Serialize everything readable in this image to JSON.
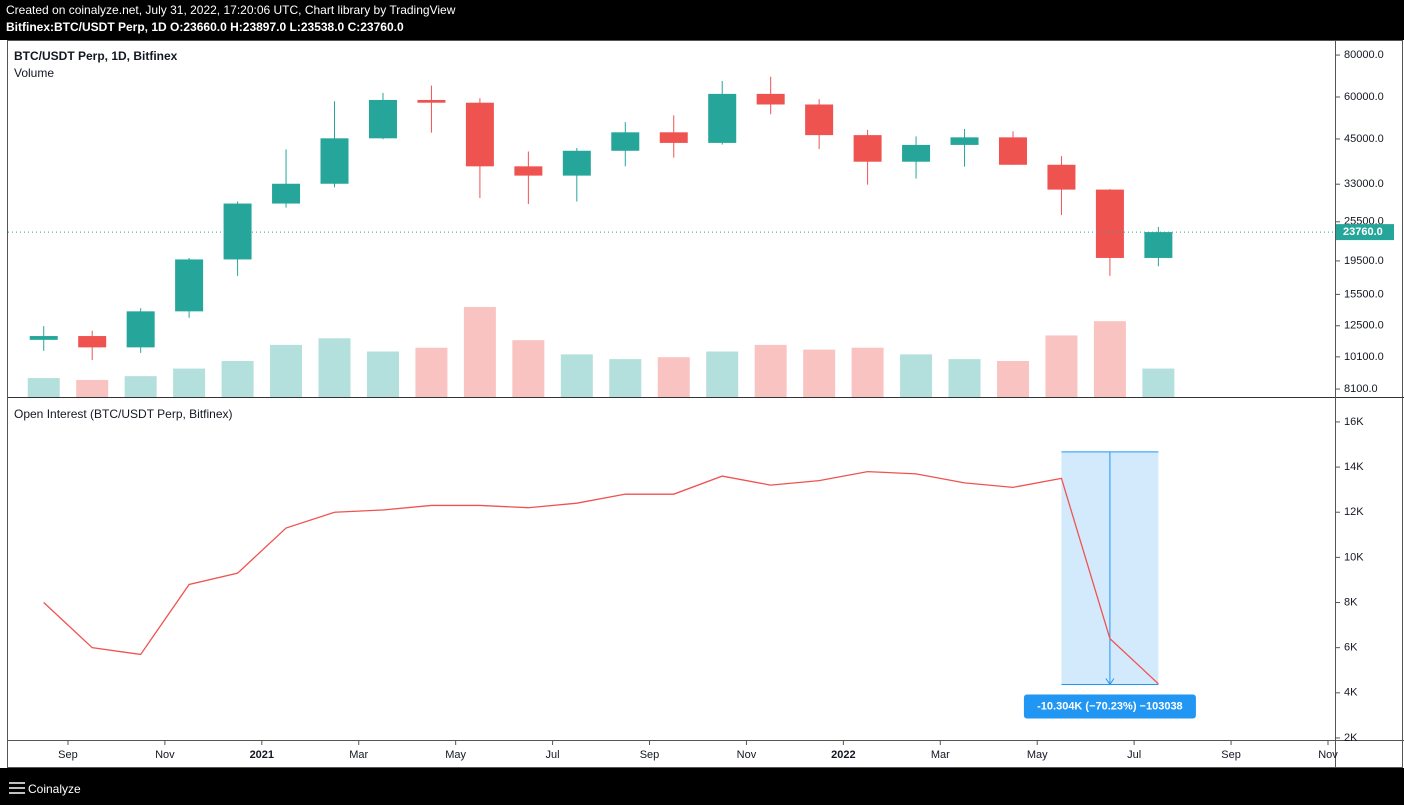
{
  "header": {
    "created": "Created on coinalyze.net, July 31, 2022, 17:20:06 UTC, Chart library by TradingView",
    "symbol": "Bitfinex:BTC/USDT Perp, 1D",
    "ohlc": [
      {
        "label": "O:",
        "value": "23660.0"
      },
      {
        "label": "H:",
        "value": "23897.0"
      },
      {
        "label": "L:",
        "value": "23538.0"
      },
      {
        "label": "C:",
        "value": "23760.0"
      }
    ]
  },
  "footer": {
    "brand": "Coinalyze"
  },
  "chart_data": [
    {
      "type": "candlestick",
      "title": "BTC/USDT Perp, 1D, Bitfinex",
      "subtitle": "Volume",
      "x": [
        "2020-08",
        "2020-09",
        "2020-10",
        "2020-11",
        "2020-12",
        "2021-01",
        "2021-02",
        "2021-03",
        "2021-04",
        "2021-05",
        "2021-06",
        "2021-07",
        "2021-08",
        "2021-09",
        "2021-10",
        "2021-11",
        "2021-12",
        "2022-01",
        "2022-02",
        "2022-03",
        "2022-04",
        "2022-05",
        "2022-06",
        "2022-07"
      ],
      "open": [
        11350,
        11650,
        10780,
        13800,
        19700,
        28900,
        33100,
        45200,
        58800,
        57700,
        37300,
        35000,
        41500,
        47100,
        43800,
        61300,
        57000,
        46200,
        38500,
        43200,
        45500,
        37700,
        31800,
        19900
      ],
      "high": [
        12470,
        12080,
        14100,
        19900,
        29300,
        41900,
        58300,
        61700,
        64900,
        59500,
        41300,
        42300,
        50500,
        52900,
        67000,
        69000,
        59100,
        47900,
        45800,
        48200,
        47400,
        40000,
        31900,
        24600
      ],
      "low": [
        10520,
        9880,
        10380,
        13200,
        17600,
        28100,
        32300,
        44900,
        47000,
        30000,
        28800,
        29300,
        37300,
        39600,
        43300,
        53300,
        42000,
        32900,
        34300,
        37200,
        37700,
        26700,
        17600,
        18800
      ],
      "close": [
        11650,
        10780,
        13800,
        19700,
        28900,
        33100,
        45200,
        58800,
        57700,
        37300,
        35000,
        41500,
        47100,
        43800,
        61300,
        57000,
        46200,
        38500,
        43200,
        45500,
        37700,
        31800,
        19900,
        23760
      ],
      "last_price_label": "23760.0",
      "volume": [
        20,
        18,
        22,
        30,
        38,
        55,
        62,
        48,
        52,
        95,
        60,
        45,
        40,
        42,
        48,
        55,
        50,
        52,
        45,
        40,
        38,
        65,
        80,
        30
      ],
      "up_color": "#26a69a",
      "down_color": "#ef5350",
      "xlim": [
        "2020-08",
        "2022-11"
      ],
      "ylim": [
        7670,
        88700
      ],
      "log": true,
      "yticks": [
        {
          "value": 8100,
          "label": "8100.0"
        },
        {
          "value": 10100,
          "label": "10100.0"
        },
        {
          "value": 12500,
          "label": "12500.0"
        },
        {
          "value": 15500,
          "label": "15500.0"
        },
        {
          "value": 19500,
          "label": "19500.0"
        },
        {
          "value": 25500,
          "label": "25500.0"
        },
        {
          "value": 33000,
          "label": "33000.0"
        },
        {
          "value": 45000,
          "label": "45000.0"
        },
        {
          "value": 60000,
          "label": "60000.0"
        },
        {
          "value": 80000,
          "label": "80000.0"
        }
      ]
    },
    {
      "type": "line",
      "title": "Open Interest (BTC/USDT Perp, Bitfinex)",
      "x": [
        "2020-08",
        "2020-09",
        "2020-10",
        "2020-11",
        "2020-12",
        "2021-01",
        "2021-02",
        "2021-03",
        "2021-04",
        "2021-05",
        "2021-06",
        "2021-07",
        "2021-08",
        "2021-09",
        "2021-10",
        "2021-11",
        "2021-12",
        "2022-01",
        "2022-02",
        "2022-03",
        "2022-04",
        "2022-05",
        "2022-06",
        "2022-07"
      ],
      "values": [
        8000,
        6000,
        5700,
        8800,
        9300,
        11300,
        12000,
        12100,
        12300,
        12300,
        12200,
        12400,
        12800,
        12800,
        13600,
        13200,
        13400,
        13800,
        13700,
        13300,
        13100,
        13500,
        6400,
        4400
      ],
      "color": "#ef5350",
      "xlim": [
        "2020-08",
        "2022-11"
      ],
      "ylim": [
        1910,
        17060
      ],
      "yticks": [
        {
          "value": 2000,
          "label": "2K"
        },
        {
          "value": 4000,
          "label": "4K"
        },
        {
          "value": 6000,
          "label": "6K"
        },
        {
          "value": 8000,
          "label": "8K"
        },
        {
          "value": 10000,
          "label": "10K"
        },
        {
          "value": 12000,
          "label": "12K"
        },
        {
          "value": 14000,
          "label": "14K"
        },
        {
          "value": 16000,
          "label": "16K"
        }
      ],
      "xticks": [
        {
          "value": "2020-09",
          "label": "Sep"
        },
        {
          "value": "2020-11",
          "label": "Nov"
        },
        {
          "value": "2021-01",
          "label": "2021"
        },
        {
          "value": "2021-03",
          "label": "Mar"
        },
        {
          "value": "2021-05",
          "label": "May"
        },
        {
          "value": "2021-07",
          "label": "Jul"
        },
        {
          "value": "2021-09",
          "label": "Sep"
        },
        {
          "value": "2021-11",
          "label": "Nov"
        },
        {
          "value": "2022-01",
          "label": "2022"
        },
        {
          "value": "2022-03",
          "label": "Mar"
        },
        {
          "value": "2022-05",
          "label": "May"
        },
        {
          "value": "2022-07",
          "label": "Jul"
        },
        {
          "value": "2022-09",
          "label": "Sep"
        },
        {
          "value": "2022-11",
          "label": "Nov"
        }
      ],
      "measure": {
        "x": [
          "2022-05",
          "2022-07"
        ],
        "start": 14672,
        "end": 4368,
        "label": "-10.304K (−70.23%) −103038"
      }
    }
  ]
}
